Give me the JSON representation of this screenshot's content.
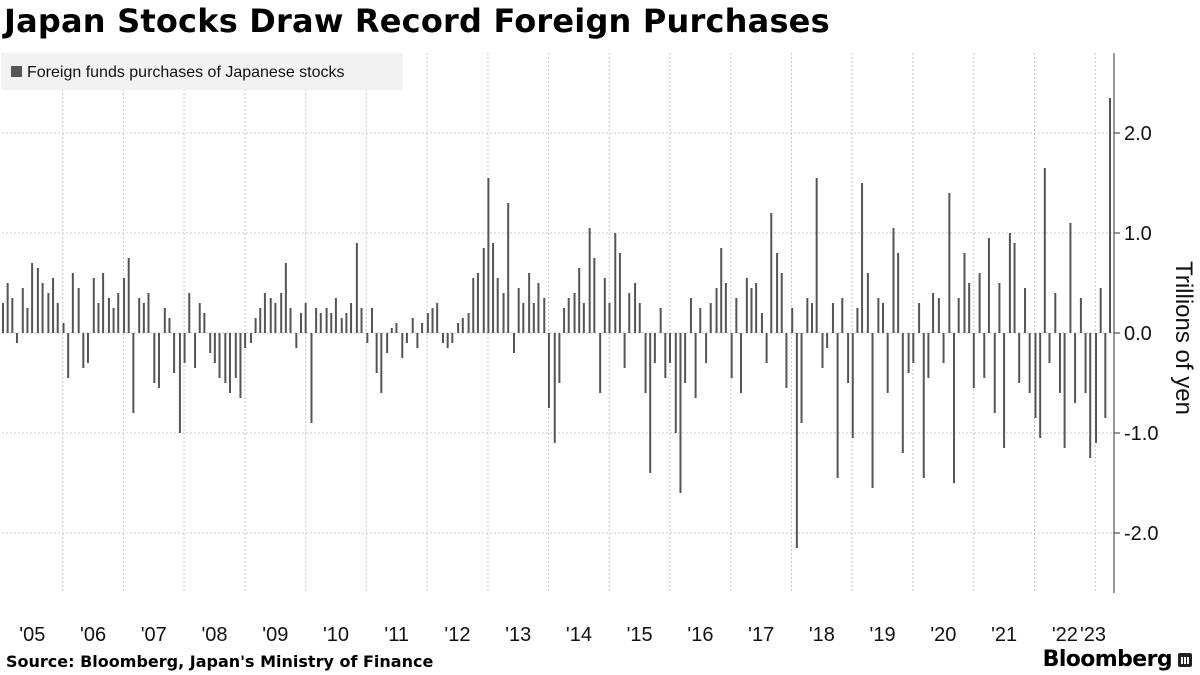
{
  "title": "Japan Stocks Draw Record Foreign Purchases",
  "source": "Source: Bloomberg, Japan's Ministry of Finance",
  "brand": "Bloomberg",
  "colors": {
    "bar": "#555555",
    "grid": "#c8c8c8",
    "legend_bg": "#f2f2f2",
    "axis": "#333333"
  },
  "chart_data": {
    "type": "bar",
    "title": "Japan Stocks Draw Record Foreign Purchases",
    "ylabel": "Trillions of yen",
    "xlabel": "",
    "legend": {
      "entries": [
        "Foreign funds purchases of Japanese stocks"
      ],
      "placement": "top-left"
    },
    "ylim": [
      -2.6,
      2.8
    ],
    "yticks": [
      2.0,
      1.0,
      0.0,
      -1.0,
      -2.0
    ],
    "ytick_labels": [
      "2.0",
      "1.0",
      "0.0",
      "-1.0",
      "-2.0"
    ],
    "x_start": "2005-01-01",
    "x_end": "2023-03-31",
    "xtick_labels": [
      "'05",
      "'06",
      "'07",
      "'08",
      "'09",
      "'10",
      "'11",
      "'12",
      "'13",
      "'14",
      "'15",
      "'16",
      "'17",
      "'18",
      "'19",
      "'20",
      "'21",
      "'22",
      "'23"
    ],
    "grid": true,
    "series": [
      {
        "name": "Foreign funds purchases of Japanese stocks",
        "frequency": "weekly",
        "points": [
          [
            "2005-01-07",
            0.3
          ],
          [
            "2005-02-04",
            0.5
          ],
          [
            "2005-03-04",
            0.35
          ],
          [
            "2005-04-01",
            -0.1
          ],
          [
            "2005-05-06",
            0.45
          ],
          [
            "2005-06-03",
            0.25
          ],
          [
            "2005-07-01",
            0.7
          ],
          [
            "2005-08-05",
            0.65
          ],
          [
            "2005-09-02",
            0.5
          ],
          [
            "2005-10-07",
            0.4
          ],
          [
            "2005-11-04",
            0.55
          ],
          [
            "2005-12-02",
            0.3
          ],
          [
            "2006-01-06",
            0.1
          ],
          [
            "2006-02-03",
            -0.45
          ],
          [
            "2006-03-03",
            0.6
          ],
          [
            "2006-04-07",
            0.45
          ],
          [
            "2006-05-05",
            -0.35
          ],
          [
            "2006-06-02",
            -0.3
          ],
          [
            "2006-07-07",
            0.55
          ],
          [
            "2006-08-04",
            0.3
          ],
          [
            "2006-09-01",
            0.6
          ],
          [
            "2006-10-06",
            0.35
          ],
          [
            "2006-11-03",
            0.25
          ],
          [
            "2006-12-01",
            0.4
          ],
          [
            "2007-01-05",
            0.55
          ],
          [
            "2007-02-02",
            0.75
          ],
          [
            "2007-03-02",
            -0.8
          ],
          [
            "2007-04-06",
            0.35
          ],
          [
            "2007-05-04",
            0.3
          ],
          [
            "2007-06-01",
            0.4
          ],
          [
            "2007-07-06",
            -0.5
          ],
          [
            "2007-08-03",
            -0.55
          ],
          [
            "2007-09-07",
            0.25
          ],
          [
            "2007-10-05",
            0.15
          ],
          [
            "2007-11-02",
            -0.4
          ],
          [
            "2007-12-07",
            -1.0
          ],
          [
            "2008-01-04",
            -0.3
          ],
          [
            "2008-02-01",
            0.4
          ],
          [
            "2008-03-07",
            -0.35
          ],
          [
            "2008-04-04",
            0.3
          ],
          [
            "2008-05-02",
            0.2
          ],
          [
            "2008-06-06",
            -0.2
          ],
          [
            "2008-07-04",
            -0.3
          ],
          [
            "2008-08-01",
            -0.45
          ],
          [
            "2008-09-05",
            -0.5
          ],
          [
            "2008-10-03",
            -0.6
          ],
          [
            "2008-11-07",
            -0.45
          ],
          [
            "2008-12-05",
            -0.65
          ],
          [
            "2009-01-02",
            -0.15
          ],
          [
            "2009-02-06",
            -0.1
          ],
          [
            "2009-03-06",
            0.15
          ],
          [
            "2009-04-03",
            0.25
          ],
          [
            "2009-05-01",
            0.4
          ],
          [
            "2009-06-05",
            0.35
          ],
          [
            "2009-07-03",
            0.3
          ],
          [
            "2009-08-07",
            0.4
          ],
          [
            "2009-09-04",
            0.7
          ],
          [
            "2009-10-02",
            0.25
          ],
          [
            "2009-11-06",
            -0.15
          ],
          [
            "2009-12-04",
            0.2
          ],
          [
            "2010-01-01",
            0.3
          ],
          [
            "2010-02-05",
            -0.9
          ],
          [
            "2010-03-05",
            0.25
          ],
          [
            "2010-04-02",
            0.2
          ],
          [
            "2010-05-07",
            0.25
          ],
          [
            "2010-06-04",
            0.2
          ],
          [
            "2010-07-02",
            0.35
          ],
          [
            "2010-08-06",
            0.15
          ],
          [
            "2010-09-03",
            0.2
          ],
          [
            "2010-10-01",
            0.3
          ],
          [
            "2010-11-05",
            0.9
          ],
          [
            "2010-12-03",
            0.25
          ],
          [
            "2011-01-07",
            -0.1
          ],
          [
            "2011-02-04",
            0.25
          ],
          [
            "2011-03-04",
            -0.4
          ],
          [
            "2011-04-01",
            -0.6
          ],
          [
            "2011-05-06",
            -0.2
          ],
          [
            "2011-06-03",
            0.05
          ],
          [
            "2011-07-01",
            0.1
          ],
          [
            "2011-08-05",
            -0.25
          ],
          [
            "2011-09-02",
            -0.1
          ],
          [
            "2011-10-07",
            0.15
          ],
          [
            "2011-11-04",
            -0.15
          ],
          [
            "2011-12-02",
            0.1
          ],
          [
            "2012-01-06",
            0.2
          ],
          [
            "2012-02-03",
            0.25
          ],
          [
            "2012-03-02",
            0.3
          ],
          [
            "2012-04-06",
            -0.1
          ],
          [
            "2012-05-04",
            -0.15
          ],
          [
            "2012-06-01",
            -0.1
          ],
          [
            "2012-07-06",
            0.1
          ],
          [
            "2012-08-03",
            0.15
          ],
          [
            "2012-09-07",
            0.2
          ],
          [
            "2012-10-05",
            0.55
          ],
          [
            "2012-11-02",
            0.6
          ],
          [
            "2012-12-07",
            0.85
          ],
          [
            "2013-01-04",
            1.55
          ],
          [
            "2013-02-01",
            0.9
          ],
          [
            "2013-03-01",
            0.55
          ],
          [
            "2013-04-05",
            0.4
          ],
          [
            "2013-05-03",
            1.3
          ],
          [
            "2013-06-07",
            -0.2
          ],
          [
            "2013-07-05",
            0.45
          ],
          [
            "2013-08-02",
            0.3
          ],
          [
            "2013-09-06",
            0.6
          ],
          [
            "2013-10-04",
            0.3
          ],
          [
            "2013-11-01",
            0.5
          ],
          [
            "2013-12-06",
            0.35
          ],
          [
            "2014-01-03",
            -0.75
          ],
          [
            "2014-02-07",
            -1.1
          ],
          [
            "2014-03-07",
            -0.5
          ],
          [
            "2014-04-04",
            0.25
          ],
          [
            "2014-05-02",
            0.35
          ],
          [
            "2014-06-06",
            0.4
          ],
          [
            "2014-07-04",
            0.65
          ],
          [
            "2014-08-01",
            0.3
          ],
          [
            "2014-09-05",
            1.05
          ],
          [
            "2014-10-03",
            0.75
          ],
          [
            "2014-11-07",
            -0.6
          ],
          [
            "2014-12-05",
            0.55
          ],
          [
            "2015-01-02",
            0.3
          ],
          [
            "2015-02-06",
            1.0
          ],
          [
            "2015-03-06",
            0.8
          ],
          [
            "2015-04-03",
            -0.35
          ],
          [
            "2015-05-01",
            0.4
          ],
          [
            "2015-06-05",
            0.5
          ],
          [
            "2015-07-03",
            0.3
          ],
          [
            "2015-08-07",
            -0.6
          ],
          [
            "2015-09-04",
            -1.4
          ],
          [
            "2015-10-02",
            -0.3
          ],
          [
            "2015-11-06",
            0.25
          ],
          [
            "2015-12-04",
            -0.45
          ],
          [
            "2016-01-01",
            -0.3
          ],
          [
            "2016-02-05",
            -1.0
          ],
          [
            "2016-03-04",
            -1.6
          ],
          [
            "2016-04-01",
            -0.5
          ],
          [
            "2016-05-06",
            0.35
          ],
          [
            "2016-06-03",
            -0.65
          ],
          [
            "2016-07-01",
            0.25
          ],
          [
            "2016-08-05",
            -0.3
          ],
          [
            "2016-09-02",
            0.3
          ],
          [
            "2016-10-07",
            0.45
          ],
          [
            "2016-11-04",
            0.85
          ],
          [
            "2016-12-02",
            0.5
          ],
          [
            "2017-01-06",
            -0.45
          ],
          [
            "2017-02-03",
            0.35
          ],
          [
            "2017-03-03",
            -0.6
          ],
          [
            "2017-04-07",
            0.55
          ],
          [
            "2017-05-05",
            0.45
          ],
          [
            "2017-06-02",
            0.5
          ],
          [
            "2017-07-07",
            0.2
          ],
          [
            "2017-08-04",
            -0.3
          ],
          [
            "2017-09-01",
            1.2
          ],
          [
            "2017-10-06",
            0.8
          ],
          [
            "2017-11-03",
            0.6
          ],
          [
            "2017-12-01",
            -0.55
          ],
          [
            "2018-01-05",
            0.25
          ],
          [
            "2018-02-02",
            -2.15
          ],
          [
            "2018-03-02",
            -0.9
          ],
          [
            "2018-04-06",
            0.35
          ],
          [
            "2018-05-04",
            0.3
          ],
          [
            "2018-06-01",
            1.55
          ],
          [
            "2018-07-06",
            -0.35
          ],
          [
            "2018-08-03",
            -0.15
          ],
          [
            "2018-09-07",
            0.3
          ],
          [
            "2018-10-05",
            -1.45
          ],
          [
            "2018-11-02",
            0.35
          ],
          [
            "2018-12-07",
            -0.5
          ],
          [
            "2019-01-04",
            -1.05
          ],
          [
            "2019-02-01",
            0.25
          ],
          [
            "2019-03-01",
            1.5
          ],
          [
            "2019-04-05",
            0.6
          ],
          [
            "2019-05-03",
            -1.55
          ],
          [
            "2019-06-07",
            0.35
          ],
          [
            "2019-07-05",
            0.3
          ],
          [
            "2019-08-02",
            -0.6
          ],
          [
            "2019-09-06",
            1.05
          ],
          [
            "2019-10-04",
            0.8
          ],
          [
            "2019-11-01",
            -1.2
          ],
          [
            "2019-12-06",
            -0.4
          ],
          [
            "2020-01-03",
            -0.3
          ],
          [
            "2020-02-07",
            0.3
          ],
          [
            "2020-03-06",
            -1.45
          ],
          [
            "2020-04-03",
            -0.45
          ],
          [
            "2020-05-01",
            0.4
          ],
          [
            "2020-06-05",
            0.35
          ],
          [
            "2020-07-03",
            -0.3
          ],
          [
            "2020-08-07",
            1.4
          ],
          [
            "2020-09-04",
            -1.5
          ],
          [
            "2020-10-02",
            0.35
          ],
          [
            "2020-11-06",
            0.8
          ],
          [
            "2020-12-04",
            0.5
          ],
          [
            "2021-01-01",
            -0.55
          ],
          [
            "2021-02-05",
            0.6
          ],
          [
            "2021-03-05",
            -0.45
          ],
          [
            "2021-04-02",
            0.95
          ],
          [
            "2021-05-07",
            -0.8
          ],
          [
            "2021-06-04",
            0.5
          ],
          [
            "2021-07-02",
            -1.15
          ],
          [
            "2021-08-06",
            1.0
          ],
          [
            "2021-09-03",
            0.9
          ],
          [
            "2021-10-01",
            -0.5
          ],
          [
            "2021-11-05",
            0.45
          ],
          [
            "2021-12-03",
            -0.6
          ],
          [
            "2022-01-07",
            -0.85
          ],
          [
            "2022-02-04",
            -1.05
          ],
          [
            "2022-03-04",
            1.65
          ],
          [
            "2022-04-01",
            -0.3
          ],
          [
            "2022-05-06",
            0.4
          ],
          [
            "2022-06-03",
            -0.6
          ],
          [
            "2022-07-01",
            -1.15
          ],
          [
            "2022-08-05",
            1.1
          ],
          [
            "2022-09-02",
            -0.7
          ],
          [
            "2022-10-07",
            0.35
          ],
          [
            "2022-11-04",
            -0.6
          ],
          [
            "2022-12-02",
            -1.25
          ],
          [
            "2023-01-06",
            -1.1
          ],
          [
            "2023-02-03",
            0.45
          ],
          [
            "2023-03-03",
            -0.85
          ],
          [
            "2023-03-31",
            2.35
          ]
        ]
      }
    ]
  }
}
